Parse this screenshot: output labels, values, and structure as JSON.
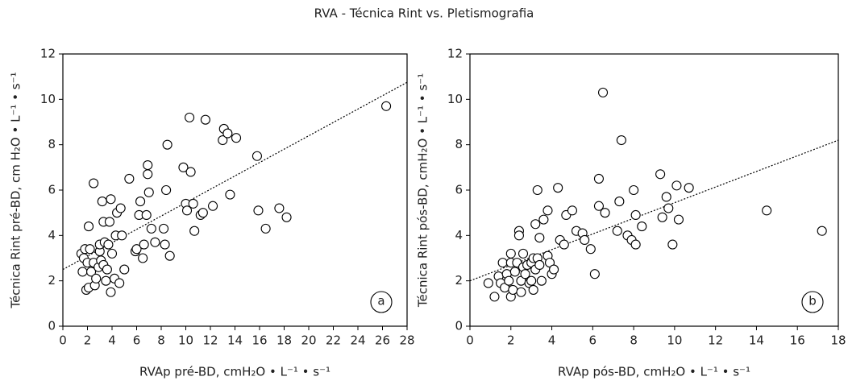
{
  "title": "RVA - Técnica Rint vs. Pletismografia",
  "chart_data": [
    {
      "type": "scatter",
      "annotation": "a",
      "xlabel": "RVAp pré-BD, cmH₂O • L⁻¹ • s⁻¹",
      "ylabel": "Técnica Rint pré-BD, cm H₂O • L⁻¹ • s⁻¹",
      "xlim": [
        0,
        28
      ],
      "ylim": [
        0,
        12
      ],
      "xticks": [
        0,
        2,
        4,
        6,
        8,
        10,
        12,
        14,
        16,
        18,
        20,
        22,
        24,
        26,
        28
      ],
      "yticks": [
        0,
        2,
        4,
        6,
        8,
        10,
        12
      ],
      "color": "#000000",
      "trendline": {
        "x": [
          0,
          28
        ],
        "y": [
          2.5,
          10.75
        ]
      },
      "x": [
        1.5,
        1.6,
        1.7,
        1.8,
        2.0,
        1.9,
        2.1,
        2.2,
        2.3,
        2.1,
        2.5,
        2.6,
        2.5,
        2.7,
        2.9,
        3.0,
        3.0,
        3.1,
        3.2,
        3.3,
        3.3,
        3.4,
        3.5,
        3.6,
        3.7,
        3.8,
        3.9,
        3.9,
        4.0,
        4.2,
        4.3,
        4.4,
        4.6,
        4.7,
        4.8,
        5.0,
        5.4,
        5.9,
        6.0,
        6.2,
        6.3,
        6.5,
        6.6,
        6.8,
        6.9,
        6.9,
        7.0,
        7.2,
        7.5,
        8.2,
        8.3,
        8.4,
        8.5,
        8.7,
        9.8,
        10.0,
        10.1,
        10.3,
        10.4,
        10.6,
        10.7,
        11.2,
        11.4,
        11.6,
        12.2,
        13.0,
        13.1,
        13.4,
        13.6,
        14.1,
        15.8,
        15.9,
        16.5,
        17.6,
        18.2,
        26.3
      ],
      "y": [
        3.2,
        2.4,
        3.0,
        3.4,
        2.8,
        1.6,
        1.7,
        3.4,
        2.4,
        4.4,
        2.8,
        1.8,
        6.3,
        2.1,
        2.6,
        3.3,
        3.6,
        2.9,
        5.5,
        4.6,
        2.7,
        3.7,
        2.0,
        2.5,
        3.6,
        4.6,
        5.6,
        1.5,
        3.2,
        2.1,
        4.0,
        5.0,
        1.9,
        5.2,
        4.0,
        2.5,
        6.5,
        3.3,
        3.4,
        4.9,
        5.5,
        3.0,
        3.6,
        4.9,
        6.7,
        7.1,
        5.9,
        4.3,
        3.7,
        4.3,
        3.6,
        6.0,
        8.0,
        3.1,
        7.0,
        5.4,
        5.1,
        9.2,
        6.8,
        5.4,
        4.2,
        4.9,
        5.0,
        9.1,
        5.3,
        8.2,
        8.7,
        8.5,
        5.8,
        8.3,
        7.5,
        5.1,
        4.3,
        5.2,
        4.8,
        9.7
      ]
    },
    {
      "type": "scatter",
      "annotation": "b",
      "xlabel": "RVAp pós-BD, cmH₂O • L⁻¹ • s⁻¹",
      "ylabel": "Técnica Rint pós-BD, cmH₂O • L⁻¹ • s⁻¹",
      "xlim": [
        0,
        18
      ],
      "ylim": [
        0,
        12
      ],
      "xticks": [
        0,
        2,
        4,
        6,
        8,
        10,
        12,
        14,
        16,
        18
      ],
      "yticks": [
        0,
        2,
        4,
        6,
        8,
        10,
        12
      ],
      "color": "#000000",
      "trendline": {
        "x": [
          0,
          18
        ],
        "y": [
          2.0,
          8.2
        ]
      },
      "x": [
        0.9,
        1.2,
        1.4,
        1.5,
        1.6,
        1.7,
        1.8,
        1.9,
        2.0,
        2.0,
        2.0,
        2.1,
        2.2,
        2.3,
        2.4,
        2.4,
        2.5,
        2.5,
        2.6,
        2.6,
        2.7,
        2.8,
        2.9,
        3.0,
        3.0,
        3.1,
        3.1,
        3.2,
        3.2,
        3.3,
        3.3,
        3.4,
        3.4,
        3.5,
        3.6,
        3.8,
        3.8,
        3.9,
        4.0,
        4.1,
        4.3,
        4.4,
        4.6,
        4.7,
        5.0,
        5.2,
        5.5,
        5.6,
        5.9,
        6.1,
        6.3,
        6.3,
        6.5,
        6.6,
        7.2,
        7.3,
        7.4,
        7.7,
        7.9,
        8.0,
        8.1,
        8.1,
        8.4,
        9.3,
        9.4,
        9.6,
        9.7,
        9.9,
        10.1,
        10.2,
        10.7,
        14.5,
        17.2
      ],
      "y": [
        1.9,
        1.3,
        2.2,
        1.9,
        2.8,
        1.7,
        2.3,
        2.0,
        2.8,
        3.2,
        1.3,
        1.6,
        2.4,
        2.8,
        4.2,
        4.0,
        2.0,
        1.5,
        3.2,
        2.6,
        2.3,
        2.7,
        1.9,
        2.8,
        2.0,
        1.6,
        3.0,
        4.5,
        2.5,
        6.0,
        3.0,
        2.7,
        3.9,
        2.0,
        4.7,
        5.1,
        3.1,
        2.8,
        2.3,
        2.5,
        6.1,
        3.8,
        3.6,
        4.9,
        5.1,
        4.2,
        4.1,
        3.8,
        3.4,
        2.3,
        5.3,
        6.5,
        10.3,
        5.0,
        4.2,
        5.5,
        8.2,
        4.0,
        3.8,
        6.0,
        4.9,
        3.6,
        4.4,
        6.7,
        4.8,
        5.7,
        5.2,
        3.6,
        6.2,
        4.7,
        6.1,
        5.1,
        4.2
      ]
    }
  ]
}
